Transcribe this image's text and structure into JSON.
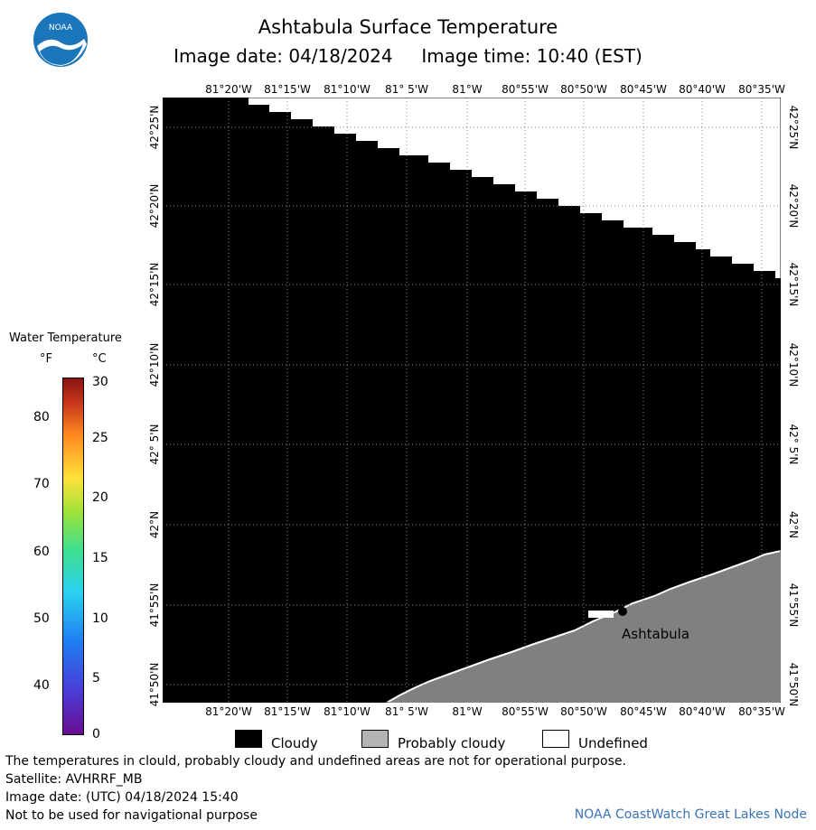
{
  "header": {
    "title": "Ashtabula Surface Temperature",
    "subtitle": "Image date: 04/18/2024     Image time: 10:40 (EST)"
  },
  "logo": {
    "text": "NOAA",
    "icon": "noaa-logo-icon"
  },
  "map": {
    "lon_labels": [
      "81°20'W",
      "81°15'W",
      "81°10'W",
      "81° 5'W",
      "81°W",
      "80°55'W",
      "80°50'W",
      "80°45'W",
      "80°40'W",
      "80°35'W"
    ],
    "lat_labels": [
      "42°25'N",
      "42°20'N",
      "42°15'N",
      "42°10'N",
      "42° 5'N",
      "42°N",
      "41°55'N",
      "41°50'N"
    ],
    "place_label": "Ashtabula",
    "colors": {
      "cloudy": "#000000",
      "probably_cloudy": "#808080",
      "undefined": "#ffffff"
    }
  },
  "legend": {
    "title": "Water Temperature",
    "unit_f": "°F",
    "unit_c": "°C",
    "f_ticks": [
      "80",
      "70",
      "60",
      "50",
      "40"
    ],
    "c_ticks": [
      "30",
      "25",
      "20",
      "15",
      "10",
      "5",
      "0"
    ]
  },
  "key": {
    "cloudy": "Cloudy",
    "probably_cloudy": "Probably cloudy",
    "undefined": "Undefined"
  },
  "footer": {
    "line1": "The temperatures in clould, probably cloudy and undefined areas are not for operational purpose.",
    "line2": "Satellite: AVHRRF_MB",
    "line3": "Image date: (UTC) 04/18/2024  15:40",
    "line4": "Not to be used for navigational purpose",
    "credit": "NOAA CoastWatch Great Lakes Node"
  }
}
